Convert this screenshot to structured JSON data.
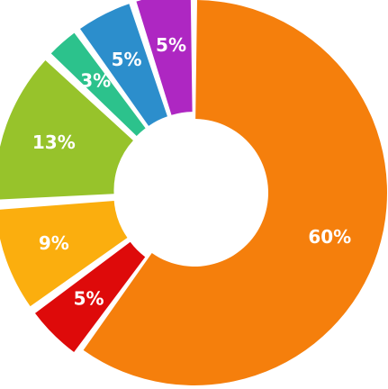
{
  "chart_data": {
    "type": "pie",
    "variant": "donut",
    "slices": [
      {
        "label": "60%",
        "value": 60,
        "color": "#F57F0C"
      },
      {
        "label": "5%",
        "value": 5,
        "color": "#DE0A0A"
      },
      {
        "label": "9%",
        "value": 9,
        "color": "#FBAE0E"
      },
      {
        "label": "13%",
        "value": 13,
        "color": "#97C32B"
      },
      {
        "label": "3%",
        "value": 3,
        "color": "#2CC28C"
      },
      {
        "label": "5%",
        "value": 5,
        "color": "#2C8ECC"
      },
      {
        "label": "5%",
        "value": 5,
        "color": "#AE27C2"
      }
    ],
    "start": "top",
    "direction": "clockwise",
    "legend": "none"
  }
}
